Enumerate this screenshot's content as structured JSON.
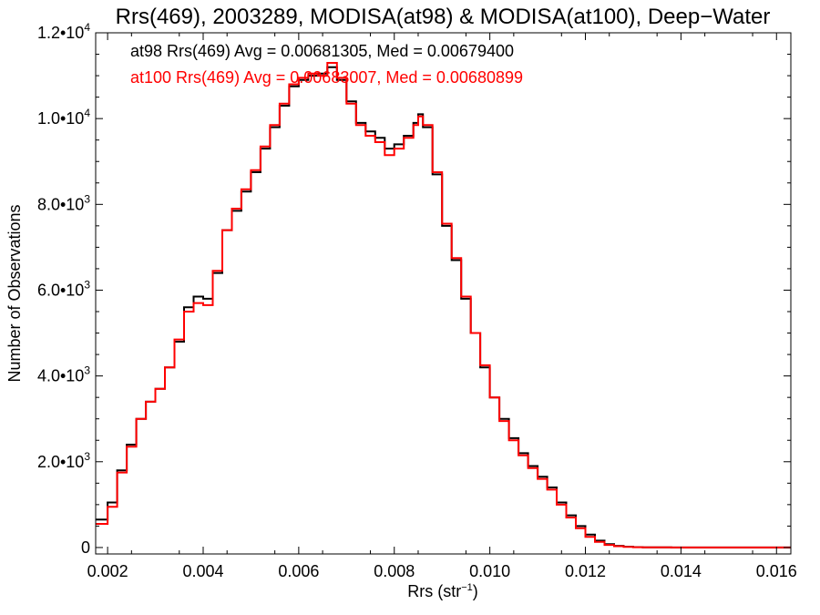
{
  "chart_data": {
    "type": "line",
    "title": "Rrs(469), 2003289, MODISA(at98) & MODISA(at100), Deep−Water",
    "xlabel": "Rrs (str",
    "xlabel_sup": "−1",
    "xlabel_close": ")",
    "ylabel": "Number of Observations",
    "xlim": [
      0.00175,
      0.0163
    ],
    "ylim": [
      -150,
      12000
    ],
    "grid": false,
    "x_ticks": [
      {
        "value": 0.002,
        "label": "0.002"
      },
      {
        "value": 0.004,
        "label": "0.004"
      },
      {
        "value": 0.006,
        "label": "0.006"
      },
      {
        "value": 0.008,
        "label": "0.008"
      },
      {
        "value": 0.01,
        "label": "0.010"
      },
      {
        "value": 0.012,
        "label": "0.012"
      },
      {
        "value": 0.014,
        "label": "0.014"
      },
      {
        "value": 0.016,
        "label": "0.016"
      }
    ],
    "y_ticks": [
      {
        "value": 0,
        "mant": "0",
        "exp": ""
      },
      {
        "value": 2000,
        "mant": "2.0•10",
        "exp": "3"
      },
      {
        "value": 4000,
        "mant": "4.0•10",
        "exp": "3"
      },
      {
        "value": 6000,
        "mant": "6.0•10",
        "exp": "3"
      },
      {
        "value": 8000,
        "mant": "8.0•10",
        "exp": "3"
      },
      {
        "value": 10000,
        "mant": "1.0•10",
        "exp": "4"
      },
      {
        "value": 12000,
        "mant": "1.2•10",
        "exp": "4"
      }
    ],
    "annotations": [
      {
        "text": "at98 Rrs(469) Avg = 0.00681305, Med = 0.00679400",
        "color": "#000000"
      },
      {
        "text": "at100 Rrs(469) Avg = 0.00683007, Med = 0.00680899",
        "color": "#ff0000"
      }
    ],
    "series": [
      {
        "color": "#000000",
        "style": "steps",
        "x": [
          0.00175,
          0.002,
          0.0022,
          0.0024,
          0.0026,
          0.0028,
          0.003,
          0.0032,
          0.0034,
          0.0036,
          0.0038,
          0.004,
          0.0042,
          0.0044,
          0.0046,
          0.0048,
          0.005,
          0.0052,
          0.0054,
          0.0056,
          0.0058,
          0.006,
          0.0062,
          0.0064,
          0.0066,
          0.0068,
          0.007,
          0.0072,
          0.0074,
          0.0076,
          0.0078,
          0.008,
          0.0082,
          0.0084,
          0.0085,
          0.0086,
          0.0088,
          0.009,
          0.0092,
          0.0094,
          0.0096,
          0.0098,
          0.01,
          0.0102,
          0.0104,
          0.0106,
          0.0108,
          0.011,
          0.0112,
          0.0114,
          0.0116,
          0.0118,
          0.012,
          0.0122,
          0.0124,
          0.0126,
          0.0128,
          0.013,
          0.0132,
          0.0134,
          0.0136,
          0.0138,
          0.014,
          0.0145,
          0.015,
          0.0155,
          0.0163
        ],
        "y": [
          650,
          1050,
          1800,
          2400,
          3000,
          3400,
          3700,
          4200,
          4800,
          5600,
          5850,
          5800,
          6400,
          7400,
          7850,
          8300,
          8750,
          9300,
          9800,
          10300,
          10750,
          10900,
          11000,
          11050,
          11200,
          10900,
          10400,
          9900,
          9700,
          9550,
          9300,
          9400,
          9600,
          9900,
          10100,
          9800,
          8700,
          7500,
          6700,
          5800,
          5000,
          4200,
          3500,
          3000,
          2550,
          2200,
          1900,
          1650,
          1400,
          1050,
          750,
          500,
          300,
          160,
          80,
          40,
          20,
          10,
          5,
          3,
          2,
          1,
          1,
          1,
          1,
          1,
          1
        ]
      },
      {
        "color": "#ff0000",
        "style": "steps",
        "x": [
          0.00175,
          0.002,
          0.0022,
          0.0024,
          0.0026,
          0.0028,
          0.003,
          0.0032,
          0.0034,
          0.0036,
          0.0038,
          0.004,
          0.0042,
          0.0044,
          0.0046,
          0.0048,
          0.005,
          0.0052,
          0.0054,
          0.0056,
          0.0058,
          0.006,
          0.0062,
          0.0064,
          0.0066,
          0.0068,
          0.007,
          0.0072,
          0.0074,
          0.0076,
          0.0078,
          0.008,
          0.0082,
          0.0084,
          0.0085,
          0.0086,
          0.0088,
          0.009,
          0.0092,
          0.0094,
          0.0096,
          0.0098,
          0.01,
          0.0102,
          0.0104,
          0.0106,
          0.0108,
          0.011,
          0.0112,
          0.0114,
          0.0116,
          0.0118,
          0.012,
          0.0122,
          0.0124,
          0.0126,
          0.0128,
          0.013,
          0.0132,
          0.0134,
          0.0136,
          0.0138,
          0.014,
          0.0145,
          0.015,
          0.0155,
          0.0163
        ],
        "y": [
          550,
          950,
          1750,
          2350,
          3000,
          3400,
          3700,
          4200,
          4850,
          5500,
          5700,
          5650,
          6450,
          7400,
          7900,
          8350,
          8800,
          9350,
          9850,
          10350,
          10800,
          10950,
          11050,
          11000,
          11300,
          10950,
          10350,
          9850,
          9600,
          9450,
          9150,
          9300,
          9550,
          9850,
          10050,
          9850,
          8750,
          7550,
          6750,
          5850,
          5000,
          4250,
          3500,
          2950,
          2500,
          2150,
          1850,
          1600,
          1350,
          1000,
          700,
          450,
          250,
          130,
          60,
          30,
          15,
          8,
          5,
          3,
          2,
          1,
          1,
          1,
          1,
          1,
          1
        ]
      }
    ]
  }
}
